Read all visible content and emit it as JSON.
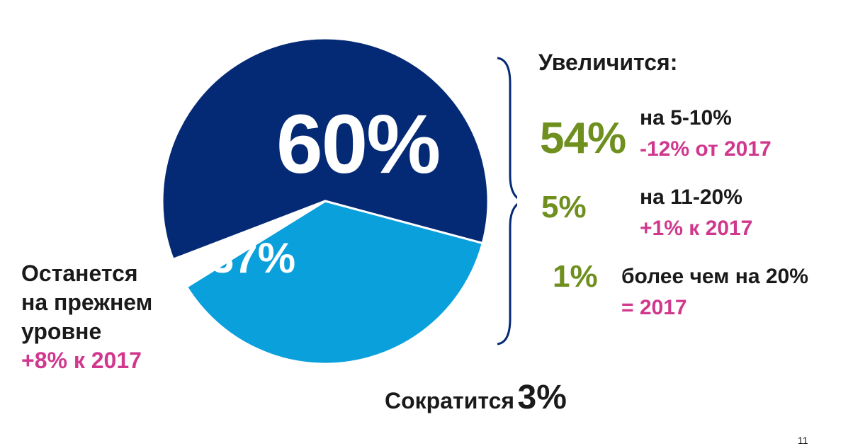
{
  "chart_data": {
    "type": "pie",
    "slices": [
      {
        "label": "Увеличится",
        "value": 60,
        "value_label": "60%",
        "color": "#052a75"
      },
      {
        "label": "Останется на прежнем уровне",
        "value": 37,
        "value_label": "37%",
        "color": "#0aa0dc"
      },
      {
        "label": "Сократится",
        "value": 3,
        "value_label": "3%",
        "color": "#ffffff"
      }
    ]
  },
  "increase": {
    "header": "Увеличится:",
    "items": [
      {
        "pct": "54%",
        "text": "на 5-10%",
        "change": "-12% от 2017"
      },
      {
        "pct": "5%",
        "text": "на 11-20%",
        "change": "+1% к 2017"
      },
      {
        "pct": "1%",
        "text": "более чем на 20%",
        "change": "= 2017"
      }
    ]
  },
  "same": {
    "line1": "Останется",
    "line2": "на прежнем",
    "line3": "уровне",
    "change": "+8% к 2017"
  },
  "decrease": {
    "label": "Сократится",
    "value": "3%"
  },
  "page_number": "11",
  "colors": {
    "navy": "#052a75",
    "light_blue": "#0aa0dc",
    "green": "#6f8f1f",
    "pink": "#d0388e"
  }
}
